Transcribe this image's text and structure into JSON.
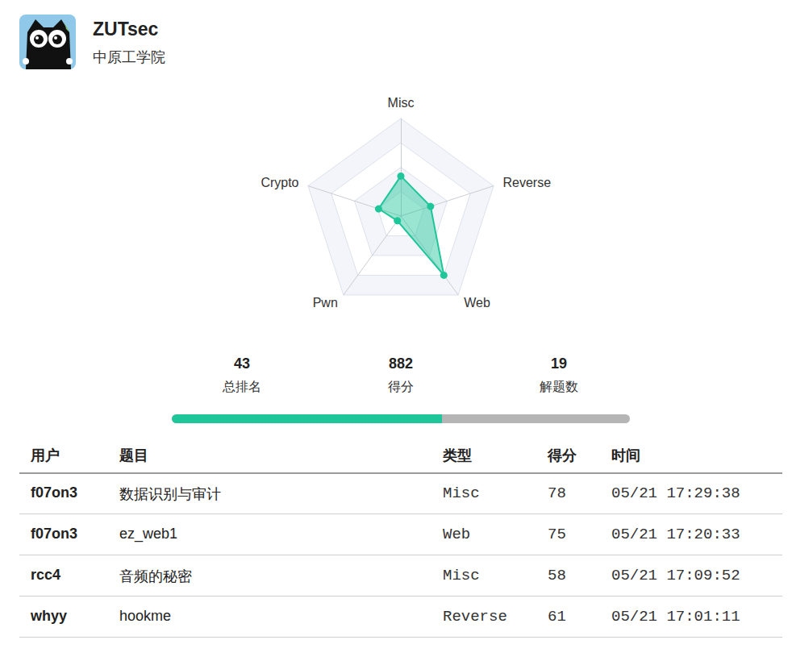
{
  "header": {
    "name": "ZUTsec",
    "school": "中原工学院"
  },
  "chart_data": {
    "type": "radar",
    "categories": [
      "Misc",
      "Reverse",
      "Web",
      "Pwn",
      "Crypto"
    ],
    "values": [
      41,
      32,
      75,
      6,
      24
    ],
    "color": "#1fc69a",
    "ylim": [
      0,
      100
    ],
    "yticks": [
      0,
      25,
      50,
      75,
      100
    ],
    "tick_labels": false,
    "grid": true
  },
  "stats": [
    {
      "value": "43",
      "label": "总排名"
    },
    {
      "value": "882",
      "label": "得分"
    },
    {
      "value": "19",
      "label": "解题数"
    }
  ],
  "progress": {
    "value": 59,
    "range": [
      0,
      100
    ],
    "color": "#1fc69a"
  },
  "table": {
    "header": [
      "用户",
      "题目",
      "类型",
      "得分",
      "时间"
    ],
    "rows": [
      [
        "f07on3",
        "数据识别与审计",
        "Misc",
        "78",
        "05/21 17:29:38"
      ],
      [
        "f07on3",
        "ez_web1",
        "Web",
        "75",
        "05/21 17:20:33"
      ],
      [
        "rcc4",
        "音频的秘密",
        "Misc",
        "58",
        "05/21 17:09:52"
      ],
      [
        "whyy",
        "hookme",
        "Reverse",
        "61",
        "05/21 17:01:11"
      ]
    ]
  }
}
